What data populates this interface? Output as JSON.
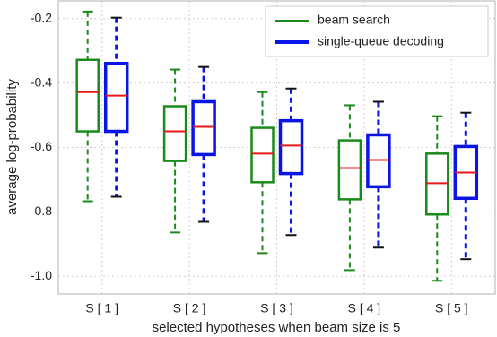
{
  "chart_data": {
    "type": "box",
    "xlabel": "selected hypotheses when beam size is 5",
    "ylabel": "average log-probability",
    "categories": [
      "S [ 1 ]",
      "S [ 2 ]",
      "S [ 3 ]",
      "S [ 4 ]",
      "S [ 5 ]"
    ],
    "ylim": [
      -1.055,
      -0.145
    ],
    "yticks": [
      -0.2,
      -0.4,
      -0.6,
      -0.8,
      {
        "value": -1.0,
        "label": "-1.0"
      }
    ],
    "grid": true,
    "legend": "upper right",
    "median_color": "#e8191b",
    "series": [
      {
        "name": "beam search",
        "color": "#1a8a1a",
        "min": [
          -0.767,
          -0.864,
          -0.928,
          -0.981,
          -1.014
        ],
        "q1": [
          -0.55,
          -0.642,
          -0.708,
          -0.761,
          -0.808
        ],
        "median": [
          -0.428,
          -0.55,
          -0.619,
          -0.664,
          -0.711
        ],
        "q3": [
          -0.328,
          -0.472,
          -0.539,
          -0.578,
          -0.619
        ],
        "max": [
          -0.178,
          -0.358,
          -0.428,
          -0.469,
          -0.503
        ]
      },
      {
        "name": "single-queue decoding",
        "color": "#0a14e6",
        "min": [
          -0.753,
          -0.831,
          -0.872,
          -0.911,
          -0.947
        ],
        "q1": [
          -0.55,
          -0.622,
          -0.681,
          -0.722,
          -0.758
        ],
        "median": [
          -0.439,
          -0.536,
          -0.594,
          -0.639,
          -0.678
        ],
        "q3": [
          -0.339,
          -0.458,
          -0.517,
          -0.561,
          -0.597
        ],
        "max": [
          -0.197,
          -0.35,
          -0.417,
          -0.458,
          -0.492
        ]
      }
    ]
  }
}
